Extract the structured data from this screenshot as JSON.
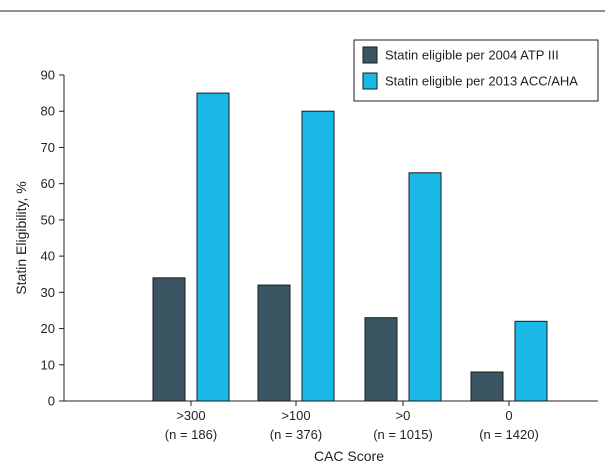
{
  "chart_data": {
    "type": "bar",
    "title": "",
    "xlabel": "CAC Score",
    "ylabel": "Statin Eligibility, %",
    "ylim": [
      0,
      90
    ],
    "yticks": [
      0,
      10,
      20,
      30,
      40,
      50,
      60,
      70,
      80,
      90
    ],
    "grid": false,
    "legend_position": "top-right",
    "categories": [
      {
        "label": ">300",
        "sublabel": "(n = 186)"
      },
      {
        "label": ">100",
        "sublabel": "(n = 376)"
      },
      {
        "label": ">0",
        "sublabel": "(n = 1015)"
      },
      {
        "label": "0",
        "sublabel": "(n = 1420)"
      }
    ],
    "series": [
      {
        "name": "Statin eligible per 2004 ATP III",
        "color": "#3b5563",
        "values": [
          34,
          32,
          23,
          8
        ]
      },
      {
        "name": "Statin eligible per 2013 ACC/AHA",
        "color": "#1ab8e6",
        "values": [
          85,
          80,
          63,
          22
        ]
      }
    ]
  }
}
